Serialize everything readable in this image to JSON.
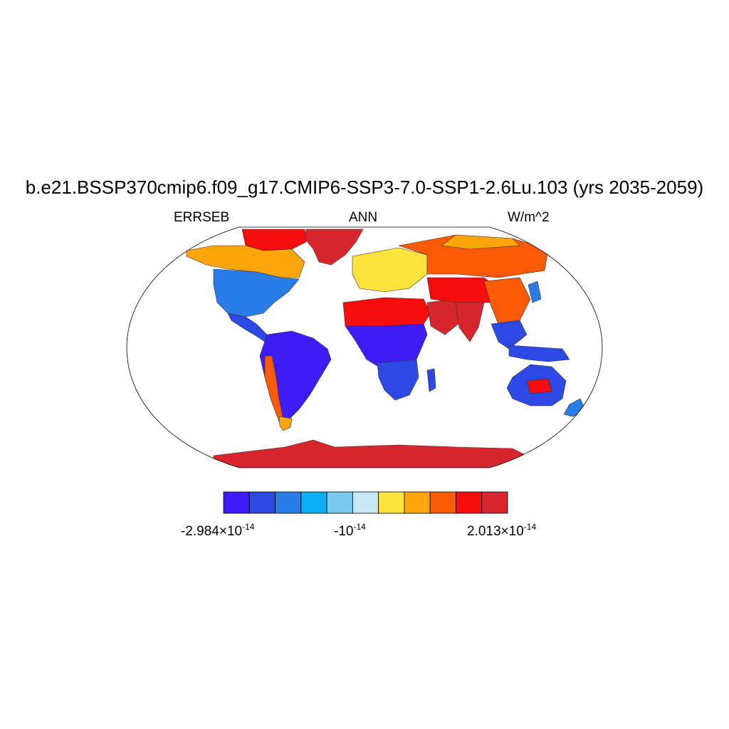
{
  "header": {
    "title": "b.e21.BSSP370cmip6.f09_g17.CMIP6-SSP3-7.0-SSP1-2.6Lu.103 (yrs 2035-2059)",
    "variable": "ERRSEB",
    "season": "ANN",
    "units": "W/m^2"
  },
  "colorbar": {
    "colors": [
      "#3f1cf7",
      "#2c49e6",
      "#2a7de8",
      "#08aff5",
      "#78c8f0",
      "#c9e6f7",
      "#fde33c",
      "#fca40c",
      "#fc5a06",
      "#f70d0d",
      "#d8262d"
    ],
    "labels": [
      {
        "mantissa": "-2.984",
        "times": "×",
        "base": "10",
        "exponent": "-14"
      },
      {
        "mantissa": "-",
        "times": "",
        "base": "10",
        "exponent": "-14"
      },
      {
        "mantissa": "2.013",
        "times": "×",
        "base": "10",
        "exponent": "-14"
      }
    ]
  },
  "map": {
    "projection": "robinson",
    "ocean_color": "#ffffff",
    "regions": [
      {
        "name": "greenland",
        "color": "#d8262d"
      },
      {
        "name": "canada-arctic",
        "color": "#f70d0d"
      },
      {
        "name": "canada",
        "color": "#fca40c"
      },
      {
        "name": "usa",
        "color": "#2a7de8"
      },
      {
        "name": "mexico-central-america",
        "color": "#2c49e6"
      },
      {
        "name": "south-america",
        "color": "#3f1cf7"
      },
      {
        "name": "andes",
        "color": "#fc5a06"
      },
      {
        "name": "patagonia",
        "color": "#fca40c"
      },
      {
        "name": "europe",
        "color": "#fde33c"
      },
      {
        "name": "russia",
        "color": "#fc5a06"
      },
      {
        "name": "siberia-north",
        "color": "#fca40c"
      },
      {
        "name": "sahara",
        "color": "#f70d0d"
      },
      {
        "name": "arabia",
        "color": "#d8262d"
      },
      {
        "name": "central-asia",
        "color": "#f70d0d"
      },
      {
        "name": "india",
        "color": "#d8262d"
      },
      {
        "name": "china",
        "color": "#fc5a06"
      },
      {
        "name": "southeast-asia",
        "color": "#2c49e6"
      },
      {
        "name": "central-africa",
        "color": "#3f1cf7"
      },
      {
        "name": "southern-africa",
        "color": "#2c49e6"
      },
      {
        "name": "madagascar",
        "color": "#2c49e6"
      },
      {
        "name": "australia",
        "color": "#2c49e6"
      },
      {
        "name": "australia-interior",
        "color": "#f70d0d"
      },
      {
        "name": "new-zealand",
        "color": "#2a7de8"
      },
      {
        "name": "japan",
        "color": "#2a7de8"
      },
      {
        "name": "indonesia",
        "color": "#2c49e6"
      },
      {
        "name": "antarctica",
        "color": "#d8262d"
      }
    ]
  }
}
